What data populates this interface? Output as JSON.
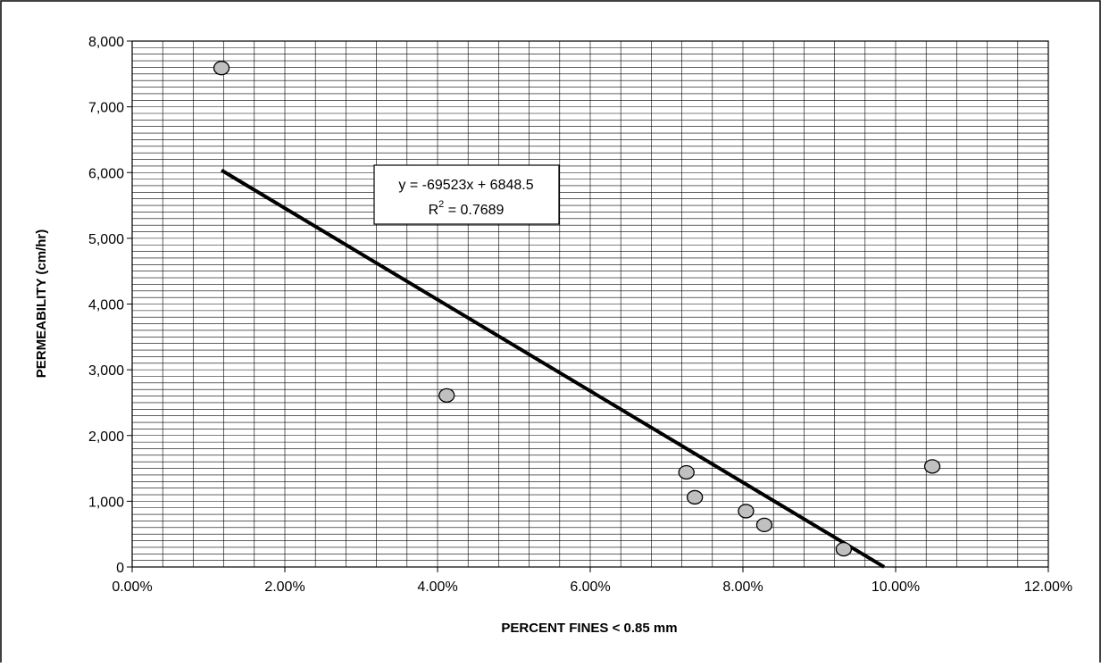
{
  "chart_data": {
    "type": "scatter",
    "title": "",
    "xlabel": "PERCENT FINES < 0.85 mm",
    "ylabel": "PERMEABILITY (cm/hr)",
    "xlim": [
      0,
      0.12
    ],
    "ylim": [
      0,
      8000
    ],
    "x_major_ticks": [
      0,
      0.02,
      0.04,
      0.06,
      0.08,
      0.1,
      0.12
    ],
    "x_tick_labels": [
      "0.00%",
      "2.00%",
      "4.00%",
      "6.00%",
      "8.00%",
      "10.00%",
      "12.00%"
    ],
    "y_major_ticks": [
      0,
      1000,
      2000,
      3000,
      4000,
      5000,
      6000,
      7000,
      8000
    ],
    "y_tick_labels": [
      "0",
      "1,000",
      "2,000",
      "3,000",
      "4,000",
      "5,000",
      "6,000",
      "7,000",
      "8,000"
    ],
    "x_minor_step": 0.004,
    "y_minor_step": 100,
    "grid": true,
    "series": [
      {
        "points": [
          {
            "x": 0.0117,
            "y": 7590
          },
          {
            "x": 0.0412,
            "y": 2610
          },
          {
            "x": 0.0726,
            "y": 1440
          },
          {
            "x": 0.0737,
            "y": 1060
          },
          {
            "x": 0.0804,
            "y": 850
          },
          {
            "x": 0.0828,
            "y": 640
          },
          {
            "x": 0.0932,
            "y": 270
          },
          {
            "x": 0.1048,
            "y": 1530
          }
        ],
        "marker_color": "#c0c0c0",
        "marker_edge_color": "#000000"
      }
    ],
    "trendline": {
      "slope": -69523,
      "intercept": 6848.5,
      "x_start": 0.0117,
      "x_end": 0.0985,
      "color": "#000000",
      "equation_text": "y = -69523x + 6848.5",
      "r2_prefix": "R",
      "r2_exponent": "2",
      "r2_value": " = 0.7689"
    }
  }
}
